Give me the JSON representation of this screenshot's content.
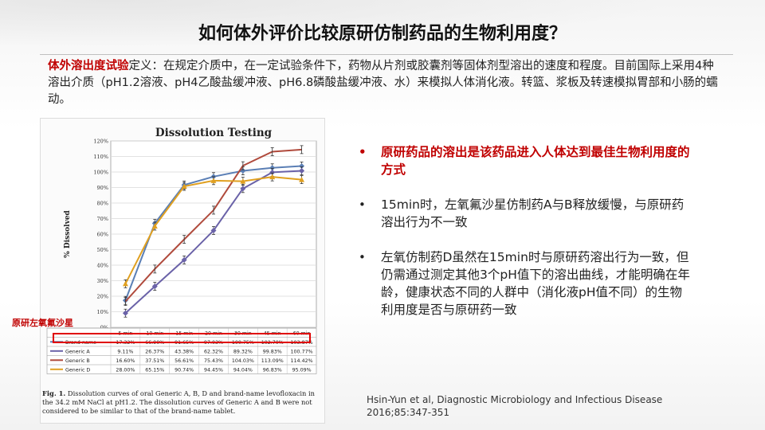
{
  "title": "如何体外评价比较原研仿制药品的生物利用度？",
  "definition": {
    "term": "体外溶出度试验",
    "body": "定义：在规定介质中，在一定试验条件下，药物从片剂或胶囊剂等固体剂型溶出的速度和程度。目前国际上采用4种溶出介质（pH1.2溶液、pH4乙酸盐缓冲液、pH6.8磷酸盐缓冲液、水）来模拟人体消化液。转篮、浆板及转速模拟胃部和小肠的蠕动。"
  },
  "callout": "原研左氧氟沙星",
  "bullets": [
    {
      "text": "原研药品的溶出是该药品进入人体达到最佳生物利用度的方式",
      "highlight": true
    },
    {
      "text": "15min时，左氧氟沙星仿制药A与B释放缓慢，与原研药溶出行为不一致",
      "highlight": false
    },
    {
      "text": "左氧仿制药D虽然在15min时与原研药溶出行为一致，但仍需通过测定其他3个pH值下的溶出曲线，才能明确在年龄，健康状态不同的人群中（消化液pH值不同）的生物利用度是否与原研药一致",
      "highlight": false
    }
  ],
  "citation": "Hsin-Yun et al, Diagnostic Microbiology and Infectious Disease 2016;85:347-351",
  "figure": {
    "caption_label": "Fig. 1.",
    "caption_text": " Dissolution curves of oral Generic A, B, D and brand-name levofloxacin in the 34.2 mM NaCl at pH1.2. The dissolution curves of Generic A and B were not considered to be similar to that of the brand-name tablet."
  },
  "chart_data": {
    "type": "line",
    "title": "Dissolution Testing",
    "ylabel": "% Dissolved",
    "xlabel": "",
    "categories": [
      "5 min",
      "10 min",
      "15 min",
      "20 min",
      "30 min",
      "45 min",
      "60 min"
    ],
    "y_ticks": [
      "0%",
      "10%",
      "20%",
      "30%",
      "40%",
      "50%",
      "60%",
      "70%",
      "80%",
      "90%",
      "100%",
      "110%",
      "120%"
    ],
    "ylim": [
      0,
      120
    ],
    "grid": true,
    "series": [
      {
        "name": "Brand-name",
        "color": "#5b7fb5",
        "values": [
          17.32,
          66.9,
          91.65,
          97.03,
          100.75,
          102.7,
          103.87
        ],
        "labels": [
          "17.32%",
          "66.90%",
          "91.65%",
          "97.03%",
          "100.75%",
          "102.70%",
          "103.87%"
        ]
      },
      {
        "name": "Generic A",
        "color": "#6a62a8",
        "values": [
          9.11,
          26.37,
          43.38,
          62.32,
          89.32,
          99.83,
          100.77
        ],
        "labels": [
          "9.11%",
          "26.37%",
          "43.38%",
          "62.32%",
          "89.32%",
          "99.83%",
          "100.77%"
        ]
      },
      {
        "name": "Generic B",
        "color": "#b04a3c",
        "values": [
          16.6,
          37.51,
          56.61,
          75.43,
          104.03,
          113.09,
          114.42
        ],
        "labels": [
          "16.60%",
          "37.51%",
          "56.61%",
          "75.43%",
          "104.03%",
          "113.09%",
          "114.42%"
        ]
      },
      {
        "name": "Generic D",
        "color": "#e0a020",
        "values": [
          28.0,
          65.15,
          90.74,
          94.45,
          94.04,
          96.83,
          95.09
        ],
        "labels": [
          "28.00%",
          "65.15%",
          "90.74%",
          "94.45%",
          "94.04%",
          "96.83%",
          "95.09%"
        ]
      }
    ]
  }
}
